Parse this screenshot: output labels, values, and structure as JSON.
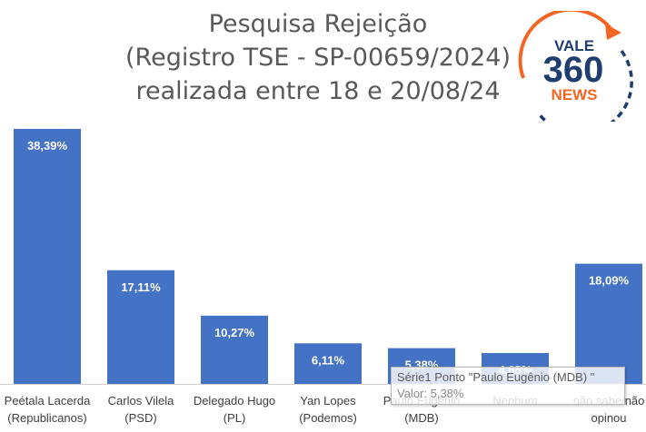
{
  "chart_data": {
    "type": "bar",
    "title_lines": [
      "Pesquisa Rejeição",
      "(Registro TSE - SP-00659/2024)",
      "realizada entre 18 e 20/08/24"
    ],
    "categories": [
      [
        "Peétala Lacerda",
        "(Republicanos)"
      ],
      [
        "Carlos Vilela",
        "(PSD)"
      ],
      [
        "Delegado Hugo",
        "(PL)"
      ],
      [
        "Yan Lopes",
        "(Podemos)"
      ],
      [
        "Paulo Eugênio",
        "(MDB)"
      ],
      [
        "Nenhum"
      ],
      [
        "não sabe/não",
        "opinou"
      ]
    ],
    "values": [
      38.39,
      17.11,
      10.27,
      6.11,
      5.38,
      4.65,
      18.09
    ],
    "data_labels": [
      "38,39%",
      "17,11%",
      "10,27%",
      "6,11%",
      "5,38%",
      "4,65%",
      "18,09%"
    ],
    "ylim": [
      0,
      40
    ],
    "bar_color": "#4472C4",
    "grid": false,
    "legend": "none"
  },
  "logo": {
    "line1": "VALE",
    "line2": "360",
    "line3": "NEWS",
    "orange": "#F26522",
    "navy": "#1F3D6E"
  },
  "tooltip": {
    "line1": "Série1 Ponto \"Paulo Eugênio (MDB) \"",
    "line2": "Valor: 5,38%"
  }
}
